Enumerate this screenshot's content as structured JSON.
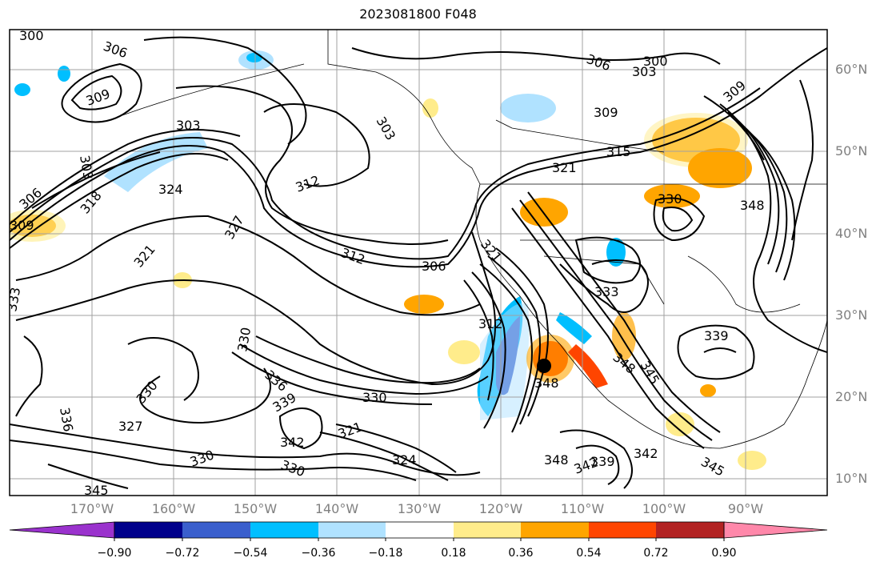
{
  "title": "2023081800 F048",
  "lat_labels": [
    "60°N",
    "50°N",
    "40°N",
    "30°N",
    "20°N",
    "10°N"
  ],
  "lon_labels": [
    "170°W",
    "160°W",
    "150°W",
    "140°W",
    "130°W",
    "120°W",
    "110°W",
    "100°W",
    "90°W"
  ],
  "colorbar": {
    "colors": [
      "#9a32cd",
      "#00008b",
      "#3a5fcd",
      "#00bfff",
      "#b0e2ff",
      "#ffffff",
      "#ffec8b",
      "#ffa500",
      "#ff4500",
      "#b22222",
      "#ff88aa"
    ],
    "tick_labels": [
      "−0.90",
      "−0.72",
      "−0.54",
      "−0.36",
      "−0.18",
      "0.18",
      "0.36",
      "0.54",
      "0.72",
      "0.90"
    ]
  },
  "contour_labels": [
    "300",
    "306",
    "303",
    "309",
    "312",
    "315",
    "318",
    "321",
    "324",
    "327",
    "330",
    "333",
    "336",
    "339",
    "342",
    "345",
    "348"
  ],
  "storm_marker": "hurricane center"
}
